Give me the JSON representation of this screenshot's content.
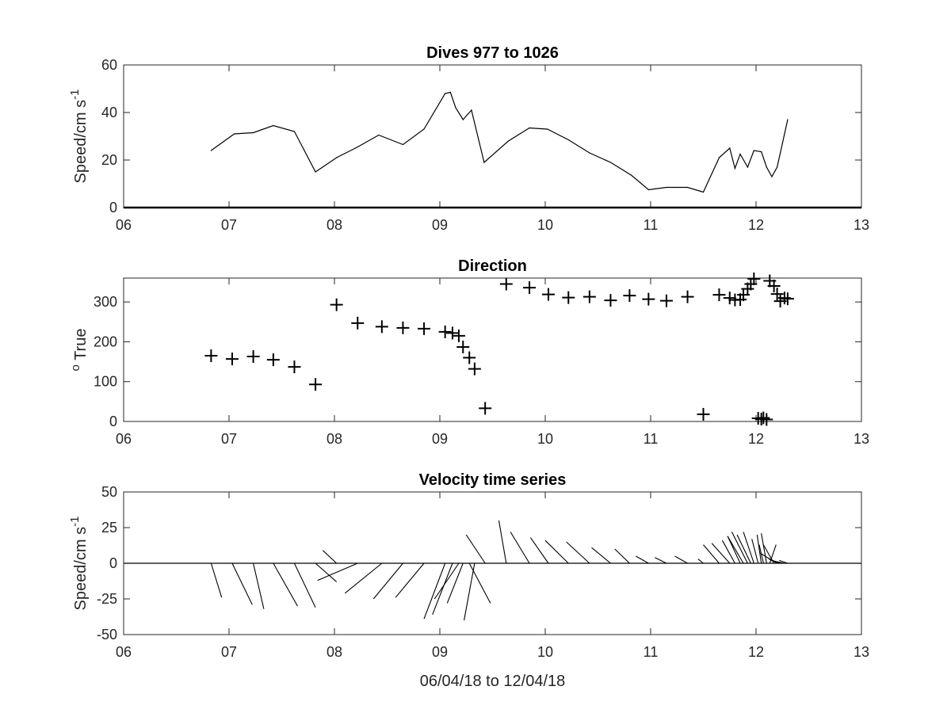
{
  "chart_data": [
    {
      "type": "line",
      "title": "Dives 977 to 1026",
      "ylabel_main": "Speed/cm s",
      "ylabel_sup": "-1",
      "xlim": [
        6,
        13
      ],
      "ylim": [
        0,
        60
      ],
      "xticks": [
        "06",
        "07",
        "08",
        "09",
        "10",
        "11",
        "12",
        "13"
      ],
      "yticks": [
        "0",
        "20",
        "40",
        "60"
      ],
      "x": [
        6.83,
        7.05,
        7.23,
        7.42,
        7.62,
        7.82,
        8.02,
        8.22,
        8.42,
        8.65,
        8.85,
        9.05,
        9.1,
        9.15,
        9.22,
        9.3,
        9.42,
        9.65,
        9.85,
        10.02,
        10.22,
        10.42,
        10.62,
        10.82,
        10.98,
        11.15,
        11.35,
        11.5,
        11.65,
        11.75,
        11.8,
        11.85,
        11.92,
        11.98,
        12.05,
        12.1,
        12.15,
        12.2,
        12.25,
        12.3
      ],
      "y": [
        24,
        31,
        31.5,
        34.5,
        32,
        15,
        21,
        25.5,
        30.5,
        26.5,
        33,
        48,
        48.5,
        42,
        37,
        41,
        19,
        28,
        33.5,
        33,
        28.5,
        23,
        19,
        13.5,
        7.5,
        8.5,
        8.5,
        6.5,
        21,
        25,
        16.5,
        22.5,
        17,
        24,
        23.5,
        17,
        13,
        17,
        27,
        37
      ],
      "baseline": 0
    },
    {
      "type": "scatter",
      "title": "Direction",
      "ylabel_sup": "o",
      "ylabel_main": " True",
      "marker": "+",
      "xlim": [
        6,
        13
      ],
      "ylim": [
        0,
        360
      ],
      "xticks": [
        "06",
        "07",
        "08",
        "09",
        "10",
        "11",
        "12",
        "13"
      ],
      "yticks": [
        "0",
        "100",
        "200",
        "300"
      ],
      "x": [
        6.83,
        7.03,
        7.23,
        7.42,
        7.62,
        7.82,
        8.02,
        8.22,
        8.45,
        8.65,
        8.85,
        9.05,
        9.12,
        9.18,
        9.22,
        9.28,
        9.33,
        9.43,
        9.63,
        9.85,
        10.03,
        10.22,
        10.42,
        10.62,
        10.8,
        10.98,
        11.15,
        11.35,
        11.5,
        11.65,
        11.75,
        11.8,
        11.85,
        11.88,
        11.92,
        11.95,
        11.98,
        12.02,
        12.05,
        12.07,
        12.1,
        12.13,
        12.17,
        12.2,
        12.23,
        12.27,
        12.3
      ],
      "y": [
        165,
        157,
        163,
        155,
        137,
        93,
        293,
        247,
        238,
        235,
        233,
        225,
        222,
        215,
        187,
        160,
        132,
        33,
        345,
        336,
        319,
        311,
        313,
        304,
        316,
        307,
        303,
        313,
        18,
        318,
        310,
        305,
        306,
        318,
        333,
        345,
        358,
        8,
        6,
        9,
        5,
        353,
        340,
        320,
        302,
        310,
        308
      ]
    },
    {
      "type": "line",
      "subtype": "stick-plot",
      "title": "Velocity time series",
      "ylabel_main": "Speed/cm s",
      "ylabel_sup": "-1",
      "xlabel": "06/04/18 to 12/04/18",
      "xlim": [
        6,
        13
      ],
      "ylim": [
        -50,
        50
      ],
      "xticks": [
        "06",
        "07",
        "08",
        "09",
        "10",
        "11",
        "12",
        "13"
      ],
      "yticks": [
        "-50",
        "-25",
        "0",
        "25",
        "50"
      ],
      "series": [
        {
          "x": [
            6.83,
            7.03,
            7.23,
            7.42,
            7.62,
            7.82,
            8.02,
            8.22,
            8.45,
            8.65,
            8.85,
            9.05,
            9.12,
            9.18,
            9.22,
            9.28,
            9.33,
            9.43,
            9.63,
            9.85,
            10.03,
            10.22,
            10.42,
            10.62,
            10.8,
            10.98,
            11.15,
            11.35,
            11.5,
            11.65,
            11.75,
            11.8,
            11.85,
            11.88,
            11.92,
            11.95,
            11.98,
            12.02,
            12.05,
            12.07,
            12.1,
            12.13,
            12.17,
            12.2,
            12.23,
            12.27,
            12.3
          ],
          "dx": [
            0.1,
            0.19,
            0.1,
            0.23,
            0.2,
            0.2,
            -0.13,
            -0.38,
            -0.35,
            -0.28,
            -0.27,
            -0.2,
            -0.19,
            -0.23,
            -0.15,
            0.2,
            -0.1,
            -0.18,
            -0.07,
            -0.18,
            -0.17,
            -0.22,
            -0.22,
            -0.18,
            -0.14,
            -0.12,
            -0.11,
            -0.12,
            -0.05,
            -0.15,
            -0.17,
            -0.12,
            -0.12,
            -0.15,
            -0.15,
            -0.13,
            -0.1,
            -0.06,
            -0.04,
            -0.04,
            -0.05,
            0.06,
            -0.1,
            -0.16,
            -0.11,
            -0.13,
            -0.08
          ],
          "dy": [
            -24,
            -29,
            -32,
            -30,
            -31,
            -13,
            9,
            -12,
            -21,
            -25,
            -24,
            -39,
            -36,
            -25,
            -28,
            -28,
            -40,
            20,
            30,
            22,
            18,
            16,
            15,
            11,
            10,
            5,
            4,
            5,
            3,
            13,
            14,
            16,
            19,
            19,
            22,
            20,
            22,
            17,
            20,
            13,
            21,
            13,
            13,
            7,
            3,
            2,
            2
          ]
        }
      ]
    }
  ]
}
